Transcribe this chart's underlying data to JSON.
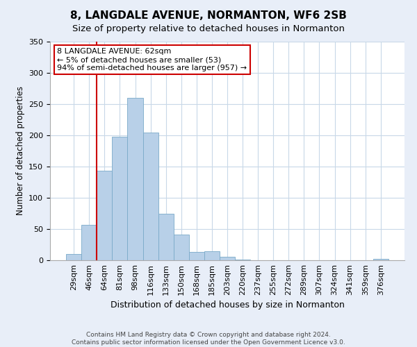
{
  "title": "8, LANGDALE AVENUE, NORMANTON, WF6 2SB",
  "subtitle": "Size of property relative to detached houses in Normanton",
  "xlabel": "Distribution of detached houses by size in Normanton",
  "ylabel": "Number of detached properties",
  "bar_labels": [
    "29sqm",
    "46sqm",
    "64sqm",
    "81sqm",
    "98sqm",
    "116sqm",
    "133sqm",
    "150sqm",
    "168sqm",
    "185sqm",
    "203sqm",
    "220sqm",
    "237sqm",
    "255sqm",
    "272sqm",
    "289sqm",
    "307sqm",
    "324sqm",
    "341sqm",
    "359sqm",
    "376sqm"
  ],
  "bar_values": [
    10,
    57,
    143,
    198,
    260,
    204,
    75,
    41,
    13,
    15,
    6,
    1,
    0,
    0,
    0,
    0,
    0,
    0,
    0,
    0,
    2
  ],
  "bar_color": "#b8d0e8",
  "bar_edge_color": "#7aaac8",
  "vline_color": "#cc0000",
  "vline_x_index": 2,
  "ylim": [
    0,
    350
  ],
  "yticks": [
    0,
    50,
    100,
    150,
    200,
    250,
    300,
    350
  ],
  "annotation_title": "8 LANGDALE AVENUE: 62sqm",
  "annotation_line1": "← 5% of detached houses are smaller (53)",
  "annotation_line2": "94% of semi-detached houses are larger (957) →",
  "annotation_box_facecolor": "#ffffff",
  "annotation_box_edgecolor": "#cc0000",
  "footer_line1": "Contains HM Land Registry data © Crown copyright and database right 2024.",
  "footer_line2": "Contains public sector information licensed under the Open Government Licence v3.0.",
  "bg_color": "#e8eef8",
  "plot_bg_color": "#ffffff",
  "grid_color": "#c8d8e8",
  "title_fontsize": 11,
  "subtitle_fontsize": 9.5,
  "ylabel_fontsize": 8.5,
  "xlabel_fontsize": 9,
  "tick_fontsize": 8,
  "annotation_fontsize": 8,
  "footer_fontsize": 6.5
}
